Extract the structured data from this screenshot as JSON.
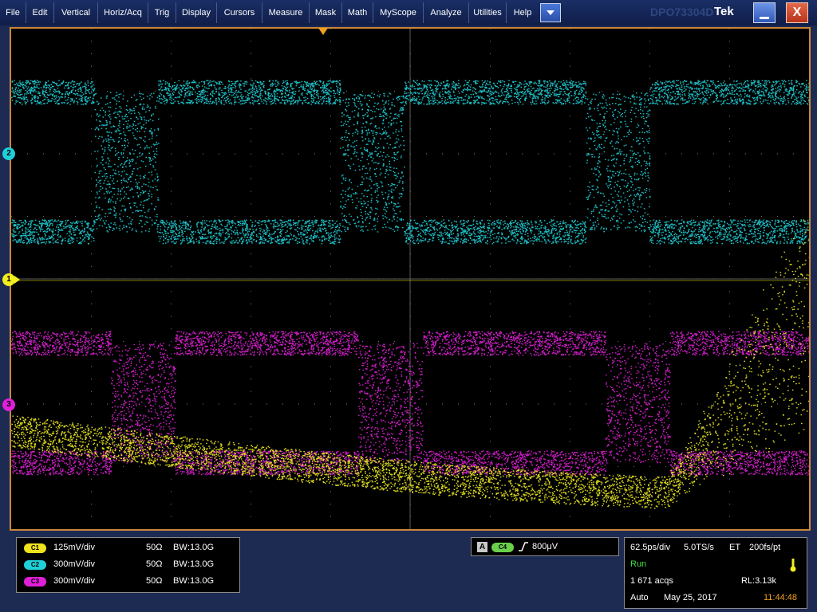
{
  "menu": {
    "items": [
      "File",
      "Edit",
      "Vertical",
      "Horiz/Acq",
      "Trig",
      "Display",
      "Cursors",
      "Measure",
      "Mask",
      "Math",
      "MyScope",
      "Analyze",
      "Utilities",
      "Help"
    ],
    "dropdown_icon": "chevron-down-icon",
    "brand_label": "Tek",
    "brand_watermark": "DPO73304D",
    "minimize_icon": "minimize-icon",
    "close_label": "X"
  },
  "screen": {
    "channel_markers": [
      {
        "label": "2",
        "color": "#1fd0d8"
      },
      {
        "label": "1",
        "color": "#f2ee20"
      },
      {
        "label": "3",
        "color": "#e020d8"
      }
    ],
    "trigger_position_icon": "trigger-position-icon"
  },
  "channels": [
    {
      "badge": "C1",
      "scale": "125mV/div",
      "impedance": "50Ω",
      "bw_label": "BW",
      "bw_value": ":13.0G",
      "color": "#f0e21c"
    },
    {
      "badge": "C2",
      "scale": "300mV/div",
      "impedance": "50Ω",
      "bw_label": "BW",
      "bw_value": ":13.0G",
      "color": "#20d0d8"
    },
    {
      "badge": "C3",
      "scale": "300mV/div",
      "impedance": "50Ω",
      "bw_label": "BW",
      "bw_value": ":13.0G",
      "color": "#e020d8"
    }
  ],
  "trigger": {
    "mode": "A",
    "source": "C4",
    "slope_icon": "rising-edge-icon",
    "level": "800μV"
  },
  "acquisition": {
    "timebase": "62.5ps/div",
    "sample_rate": "5.0TS/s",
    "mode": "ET",
    "resolution": "200fs/pt",
    "status": "Run",
    "status_icon": "thermometer-icon",
    "acqs": "1 671 acqs",
    "record_length": "RL:3.13k",
    "trigger_mode": "Auto",
    "date": "May 25, 2017",
    "time": "11:44:48"
  },
  "colors": {
    "ch1": "#f2ee20",
    "ch2": "#1fd0d8",
    "ch3": "#e020d8",
    "status_run": "#3ce03c",
    "time": "#f0a020",
    "frame": "#c9873a"
  }
}
